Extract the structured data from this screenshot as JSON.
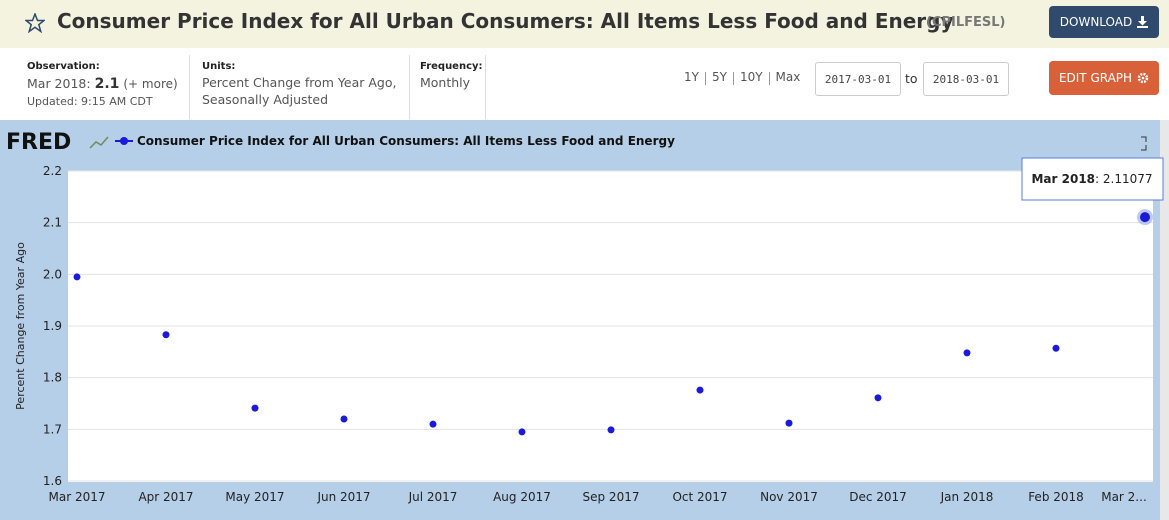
{
  "header": {
    "title": "Consumer Price Index for All Urban Consumers: All Items Less Food and Energy",
    "series_id": "(CPILFESL)",
    "download": "DOWNLOAD"
  },
  "info": {
    "observation": {
      "label": "Observation:",
      "date": "Mar 2018:",
      "value": "2.1",
      "more": "(+ more)",
      "updated": "Updated: 9:15 AM CDT"
    },
    "units": {
      "label": "Units:",
      "lines": [
        "Percent Change from Year Ago,",
        "Seasonally Adjusted"
      ]
    },
    "frequency": {
      "label": "Frequency:",
      "value": "Monthly"
    }
  },
  "controls": {
    "ranges": [
      "1Y",
      "5Y",
      "10Y",
      "Max"
    ],
    "start": "2017-03-01",
    "to": "to",
    "end": "2018-03-01",
    "edit": "EDIT GRAPH"
  },
  "chart_data": {
    "type": "line",
    "logo": "FRED",
    "ylabel": "Percent Change from Year Ago",
    "categories": [
      "Mar 2017",
      "Apr 2017",
      "May 2017",
      "Jun 2017",
      "Jul 2017",
      "Aug 2017",
      "Sep 2017",
      "Oct 2017",
      "Nov 2017",
      "Dec 2017",
      "Jan 2018",
      "Feb 2018",
      "Mar 2..."
    ],
    "series": [
      {
        "name": "Consumer Price Index for All Urban Consumers: All Items Less Food and Energy",
        "color": "#1a1ad8",
        "values": [
          1.995,
          1.883,
          1.741,
          1.72,
          1.71,
          1.695,
          1.699,
          1.776,
          1.712,
          1.761,
          1.848,
          1.857,
          2.11077
        ]
      }
    ],
    "ylim": [
      1.6,
      2.2
    ],
    "yticks": [
      1.6,
      1.7,
      1.8,
      1.9,
      {
        "value": 2,
        "label": "2.0"
      },
      2.1,
      2.2
    ],
    "grid": true,
    "tooltip": {
      "label": "Mar 2018"
    }
  }
}
